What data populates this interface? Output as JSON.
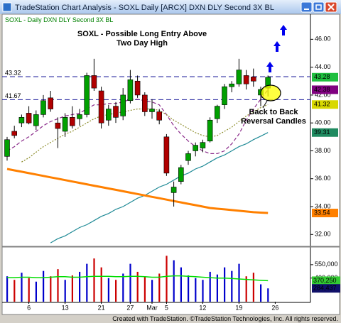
{
  "window_title": "TradeStation Chart Analysis - SOXL Daily [ARCX] DXN DLY Second 3X BL",
  "footer": "Created with TradeStation. ©TradeStation Technologies, Inc. All rights reserved.",
  "chart_data": {
    "type": "candlestick",
    "legend_text": "SOXL - Daily  DXN DLY Second 3X BL",
    "annotations": [
      {
        "lines": [
          "SOXL - Possible Long Entry Above",
          "Two Day High"
        ]
      },
      {
        "lines": [
          "Back to Back",
          "Reversal Candles"
        ]
      }
    ],
    "categories": [
      null,
      null,
      null,
      "6",
      null,
      null,
      null,
      null,
      "13",
      null,
      null,
      null,
      null,
      "21",
      null,
      null,
      null,
      "27",
      null,
      null,
      "Mar",
      null,
      "5",
      null,
      null,
      null,
      null,
      "12",
      null,
      null,
      null,
      null,
      "19",
      null,
      null,
      null,
      null,
      "26"
    ],
    "open": [
      37.6,
      39.4,
      40.0,
      40.7,
      39.8,
      40.6,
      41.8,
      40.0,
      39.4,
      40.4,
      40.3,
      40.6,
      43.4,
      42.3,
      40.2,
      41.2,
      40.5,
      41.6,
      43.0,
      42.0,
      40.8,
      40.8,
      39.0,
      35.0,
      35.8,
      37.3,
      38.0,
      38.2,
      38.7,
      40.3,
      41.3,
      42.6,
      42.8,
      43.4,
      43.3,
      42.0,
      42.5,
      null
    ],
    "high": [
      39.0,
      39.8,
      40.6,
      41.2,
      40.9,
      42.0,
      42.3,
      40.4,
      40.7,
      41.2,
      41.0,
      43.6,
      44.6,
      42.6,
      41.3,
      41.5,
      42.5,
      43.8,
      43.4,
      42.2,
      41.7,
      41.0,
      39.2,
      35.8,
      37.0,
      38.0,
      38.6,
      38.8,
      40.4,
      41.3,
      42.8,
      43.0,
      44.6,
      43.8,
      43.9,
      42.6,
      43.4,
      null
    ],
    "low": [
      37.3,
      38.9,
      39.7,
      39.9,
      39.5,
      40.4,
      40.8,
      38.2,
      39.0,
      39.6,
      39.8,
      40.4,
      42.3,
      39.6,
      39.8,
      40.0,
      40.2,
      41.4,
      41.8,
      40.5,
      40.3,
      39.9,
      36.2,
      34.0,
      35.6,
      37.0,
      37.6,
      37.9,
      38.6,
      40.0,
      41.0,
      42.2,
      42.6,
      42.4,
      42.6,
      41.2,
      41.9,
      null
    ],
    "close": [
      38.8,
      39.1,
      40.4,
      40.0,
      40.6,
      41.6,
      41.0,
      39.6,
      40.4,
      39.8,
      40.6,
      43.4,
      42.5,
      40.0,
      41.0,
      40.4,
      42.0,
      43.1,
      42.0,
      40.8,
      41.0,
      40.2,
      36.4,
      35.4,
      36.8,
      37.8,
      38.4,
      38.6,
      40.2,
      41.2,
      42.6,
      42.8,
      43.8,
      42.8,
      43.0,
      42.4,
      43.28,
      null
    ],
    "up_color": "#00a000",
    "down_color": "#b00000",
    "ylim": [
      31.2,
      47.8
    ],
    "yticks": [
      {
        "value": 32,
        "label": "32.00"
      },
      {
        "value": 34,
        "label": "34.00"
      },
      {
        "value": 36,
        "label": "36.00"
      },
      {
        "value": 38,
        "label": "38.00"
      },
      {
        "value": 40,
        "label": "40.00"
      },
      {
        "value": 42,
        "label": "42.00"
      },
      {
        "value": 44,
        "label": "44.00"
      },
      {
        "value": 46,
        "label": "46.00"
      }
    ],
    "overlays": [
      {
        "color": "#8a2a8a",
        "dash": "5 3",
        "values": [
          38.0,
          38.3,
          38.7,
          39.0,
          39.4,
          39.8,
          40.1,
          40.3,
          40.5,
          40.6,
          40.7,
          41.0,
          41.3,
          41.3,
          41.4,
          41.4,
          41.5,
          41.7,
          41.7,
          41.6,
          41.5,
          41.3,
          40.6,
          39.8,
          39.2,
          38.7,
          38.3,
          38.0,
          37.8,
          37.8,
          38.0,
          38.5,
          39.2,
          40.2,
          41.0,
          41.7,
          42.38,
          null
        ]
      },
      {
        "color": "#8c8c2a",
        "dash": "2 2",
        "values": [
          null,
          null,
          37.2,
          37.5,
          37.9,
          38.3,
          38.6,
          38.9,
          39.2,
          39.4,
          39.7,
          40.0,
          40.3,
          40.5,
          40.6,
          40.7,
          40.8,
          40.9,
          41.0,
          41.0,
          41.0,
          40.9,
          40.6,
          40.2,
          39.9,
          39.6,
          39.3,
          39.1,
          39.0,
          39.1,
          39.4,
          39.7,
          40.1,
          40.5,
          40.8,
          41.1,
          41.32,
          null
        ]
      },
      {
        "color": "#1f8a96",
        "dash": "none",
        "values": [
          null,
          null,
          null,
          null,
          null,
          null,
          31.4,
          31.7,
          31.9,
          32.2,
          32.5,
          32.7,
          33.0,
          33.3,
          33.5,
          33.8,
          34.0,
          34.3,
          34.6,
          34.8,
          35.1,
          35.4,
          35.6,
          35.9,
          36.2,
          36.4,
          36.7,
          36.9,
          37.2,
          37.5,
          37.7,
          38.0,
          38.3,
          38.5,
          38.8,
          39.05,
          39.31,
          null
        ]
      },
      {
        "color": "#ff8000",
        "dash": "none",
        "width": 3,
        "values": [
          36.7,
          36.6,
          36.5,
          36.4,
          36.3,
          36.2,
          36.1,
          36.0,
          35.9,
          35.8,
          35.7,
          35.6,
          35.5,
          35.4,
          35.3,
          35.2,
          35.1,
          35.0,
          34.9,
          34.8,
          34.7,
          34.6,
          34.5,
          34.4,
          34.3,
          34.2,
          34.1,
          34.0,
          33.9,
          33.85,
          33.8,
          33.75,
          33.7,
          33.65,
          33.6,
          33.57,
          33.54,
          null
        ]
      }
    ],
    "reference_lines": [
      {
        "value": 43.32,
        "color": "#1a1a9a"
      },
      {
        "value": 41.67,
        "color": "#1a1a9a"
      }
    ],
    "price_markers": [
      {
        "value": 43.28,
        "color": "#1fbf3f",
        "text_color": "#000000"
      },
      {
        "value": 42.38,
        "color": "#800080",
        "text_color": "#ffffff"
      },
      {
        "value": 41.32,
        "color": "#d8d800",
        "text_color": "#000000"
      },
      {
        "value": 39.31,
        "color": "#1f8a60",
        "text_color": "#ffffff"
      },
      {
        "value": 33.54,
        "color": "#ff8000",
        "text_color": "#000000"
      }
    ],
    "volume": {
      "up_color": "#0000cc",
      "down_color": "#cc0000",
      "ylim": [
        135000,
        740000
      ],
      "yticks": [
        {
          "value": 400000,
          "label": "400,000"
        },
        {
          "value": 550000,
          "label": "550,000"
        }
      ],
      "values": [
        420000,
        380000,
        460000,
        400000,
        360000,
        480000,
        420000,
        500000,
        380000,
        430000,
        470000,
        560000,
        620000,
        520000,
        400000,
        380000,
        450000,
        560000,
        470000,
        420000,
        380000,
        450000,
        650000,
        600000,
        520000,
        430000,
        400000,
        380000,
        470000,
        440000,
        520000,
        480000,
        560000,
        420000,
        460000,
        330000,
        284437,
        null
      ],
      "average": {
        "color": "#00dd00",
        "values": [
          405000,
          405000,
          410000,
          410000,
          405000,
          405000,
          410000,
          415000,
          415000,
          410000,
          410000,
          415000,
          420000,
          420000,
          420000,
          415000,
          415000,
          420000,
          420000,
          415000,
          410000,
          410000,
          420000,
          425000,
          425000,
          420000,
          415000,
          410000,
          405000,
          400000,
          400000,
          395000,
          390000,
          385000,
          380000,
          375000,
          370250,
          null
        ]
      },
      "markers": [
        {
          "value": 370250,
          "label": "370,250",
          "color": "#33cc33",
          "text_color": "#000000"
        },
        {
          "value": 284437,
          "label": "284,437",
          "color": "#10106a",
          "text_color": "#ffffff"
        }
      ]
    }
  }
}
